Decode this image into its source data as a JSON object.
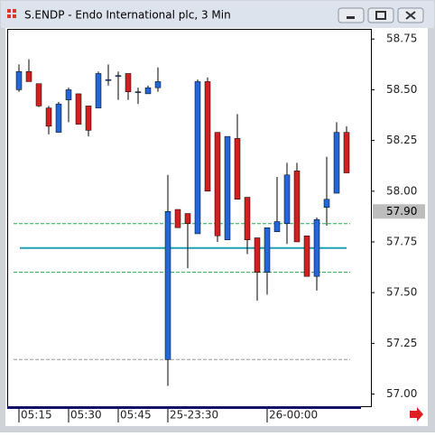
{
  "window": {
    "title": "S.ENDP - Endo International plc, 3 Min"
  },
  "chart_data": {
    "type": "candlestick",
    "categories": [
      "05:15",
      null,
      null,
      null,
      null,
      "05:30",
      null,
      null,
      null,
      null,
      "05:45",
      null,
      null,
      null,
      null,
      "25-23:30",
      null,
      null,
      null,
      null,
      null,
      null,
      null,
      null,
      null,
      "26-00:00",
      null,
      null,
      null,
      null,
      null,
      null,
      null,
      null
    ],
    "open": [
      58.5,
      58.59,
      58.53,
      58.41,
      58.29,
      58.45,
      58.48,
      58.42,
      58.41,
      58.55,
      58.57,
      58.58,
      58.49,
      58.48,
      58.51,
      57.17,
      57.91,
      57.89,
      57.79,
      58.54,
      58.29,
      57.76,
      58.26,
      57.97,
      57.77,
      57.6,
      57.8,
      57.84,
      58.1,
      57.78,
      57.58,
      57.92,
      57.99,
      58.29
    ],
    "high": [
      58.625,
      58.65,
      58.53,
      58.42,
      58.44,
      58.51,
      58.48,
      58.42,
      58.59,
      58.625,
      58.59,
      58.58,
      58.51,
      58.52,
      58.61,
      58.08,
      57.91,
      57.89,
      58.55,
      58.56,
      58.29,
      58.27,
      58.38,
      57.97,
      57.77,
      57.82,
      58.07,
      58.14,
      58.14,
      57.78,
      57.87,
      58.17,
      58.34,
      58.32
    ],
    "low": [
      58.49,
      58.54,
      58.415,
      58.28,
      58.29,
      58.34,
      58.33,
      58.27,
      58.41,
      58.52,
      58.45,
      58.45,
      58.43,
      58.48,
      58.49,
      57.04,
      57.82,
      57.62,
      57.79,
      58.0,
      57.75,
      57.76,
      57.96,
      57.69,
      57.46,
      57.49,
      57.8,
      57.74,
      57.75,
      57.58,
      57.51,
      57.83,
      57.99,
      58.09
    ],
    "close": [
      58.59,
      58.54,
      58.42,
      58.32,
      58.43,
      58.5,
      58.33,
      58.3,
      58.58,
      58.55,
      58.57,
      58.49,
      58.49,
      58.51,
      58.54,
      57.9,
      57.82,
      57.84,
      58.54,
      58.0,
      57.78,
      58.27,
      57.96,
      57.76,
      57.6,
      57.82,
      57.85,
      58.08,
      57.75,
      57.58,
      57.86,
      57.96,
      58.29,
      58.09
    ],
    "up_color": "#2266d8",
    "down_color": "#d02020",
    "ylim": [
      56.94,
      58.8
    ],
    "yticks": [
      {
        "value": 57.0,
        "label": "57.00"
      },
      57.25,
      {
        "value": 57.5,
        "label": "57.50"
      },
      57.75,
      {
        "value": 58.0,
        "label": "58.00"
      },
      58.25,
      {
        "value": 58.5,
        "label": "58.50"
      },
      58.75
    ],
    "levels": [
      {
        "value": 57.84,
        "color": "#22b04a",
        "style": "dashed"
      },
      {
        "value": 57.6,
        "color": "#22b04a",
        "style": "dashed"
      },
      {
        "value": 57.72,
        "color": "#1fa0b4",
        "style": "solid"
      },
      {
        "value": 57.17,
        "color": "#999999",
        "style": "dashed"
      }
    ],
    "current_price": {
      "value": 57.9,
      "label": "57.90"
    }
  }
}
